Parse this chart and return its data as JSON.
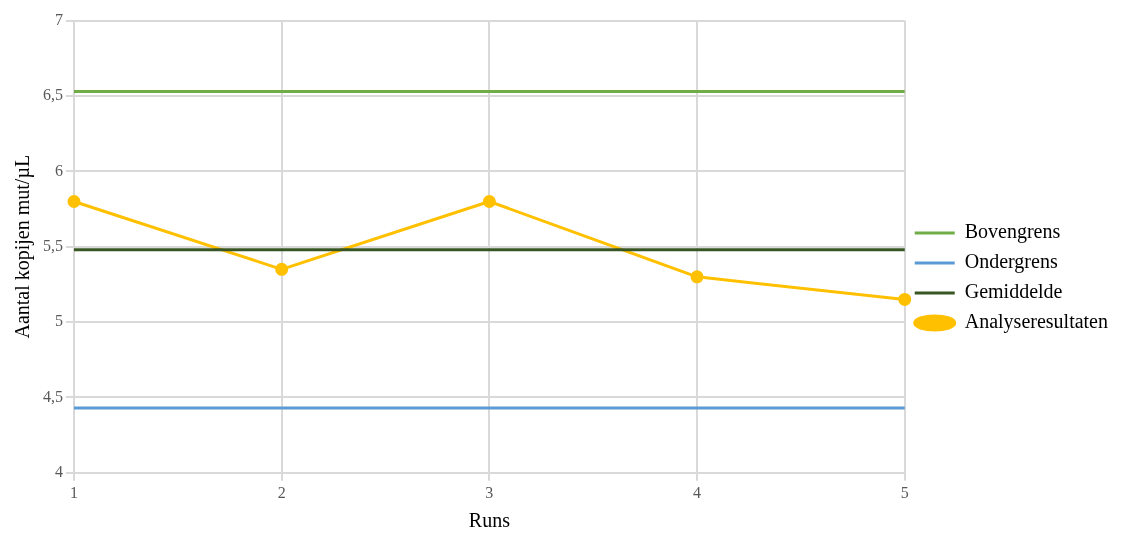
{
  "chart_data": {
    "type": "line",
    "xlabel": "Runs",
    "ylabel": "Aantal kopijen mut/µL",
    "categories": [
      "1",
      "2",
      "3",
      "4",
      "5"
    ],
    "series": [
      {
        "name": "Bovengrens",
        "color": "#70ad47",
        "marker": "none",
        "values": [
          6.53,
          6.53,
          6.53,
          6.53,
          6.53
        ]
      },
      {
        "name": "Ondergrens",
        "color": "#5b9bd5",
        "marker": "none",
        "values": [
          4.43,
          4.43,
          4.43,
          4.43,
          4.43
        ]
      },
      {
        "name": "Gemiddelde",
        "color": "#375623",
        "marker": "none",
        "values": [
          5.48,
          5.48,
          5.48,
          5.48,
          5.48
        ]
      },
      {
        "name": "Analyseresultaten",
        "color": "#ffc000",
        "marker": "circle",
        "values": [
          5.8,
          5.35,
          5.8,
          5.3,
          5.15
        ]
      }
    ],
    "ylim": [
      4,
      7
    ],
    "yticks": [
      4,
      {
        "value": 4.5,
        "label": "4,5"
      },
      5,
      {
        "value": 5.5,
        "label": "5,5"
      },
      6,
      {
        "value": 6.5,
        "label": "6,5"
      },
      7
    ],
    "grid": true,
    "legend": "right"
  }
}
